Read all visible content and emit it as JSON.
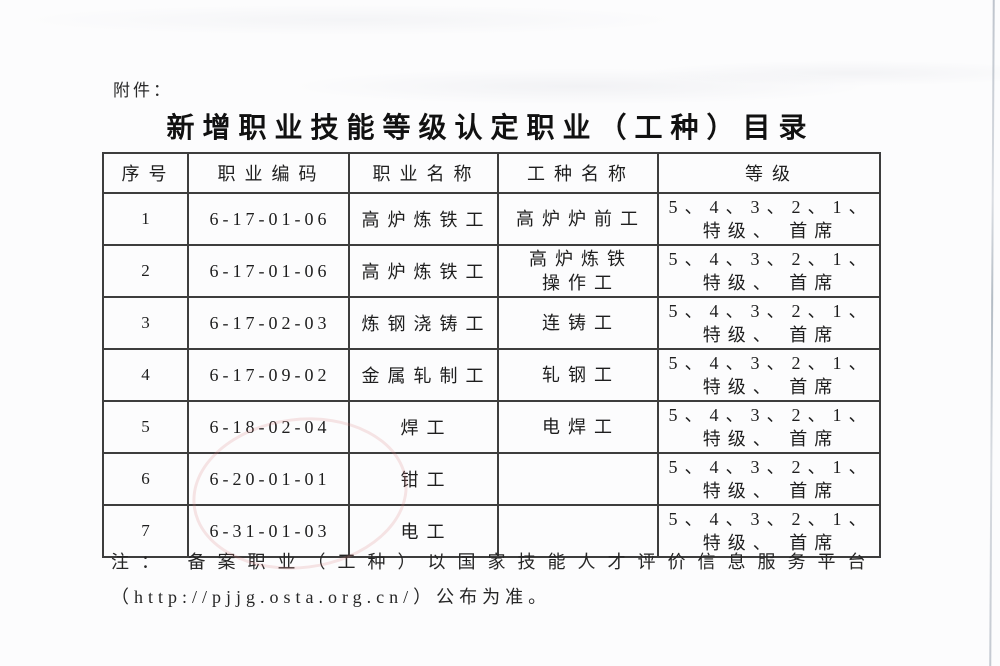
{
  "page": {
    "attachment_label": "附件：",
    "title": "新增职业技能等级认定职业（工种）目录",
    "note_line1": "注： 备案职业（工种）以国家技能人才评价信息服务平台",
    "note_line2": "（http://pjjg.osta.org.cn/）公布为准。"
  },
  "table": {
    "headers": [
      "序号",
      "职业编码",
      "职业名称",
      "工种名称",
      "等级"
    ],
    "rows": [
      {
        "no": "1",
        "code": "6-17-01-06",
        "occupation": "高炉炼铁工",
        "work_type_lines": [
          "高炉炉前工"
        ],
        "grade_lines": [
          "5、4、3、2、1、",
          "特级、 首席"
        ]
      },
      {
        "no": "2",
        "code": "6-17-01-06",
        "occupation": "高炉炼铁工",
        "work_type_lines": [
          "高炉炼铁",
          "操作工"
        ],
        "grade_lines": [
          "5、4、3、2、1、",
          "特级、 首席"
        ]
      },
      {
        "no": "3",
        "code": "6-17-02-03",
        "occupation": "炼钢浇铸工",
        "work_type_lines": [
          "连铸工"
        ],
        "grade_lines": [
          "5、4、3、2、1、",
          "特级、 首席"
        ]
      },
      {
        "no": "4",
        "code": "6-17-09-02",
        "occupation": "金属轧制工",
        "work_type_lines": [
          "轧钢工"
        ],
        "grade_lines": [
          "5、4、3、2、1、",
          "特级、 首席"
        ]
      },
      {
        "no": "5",
        "code": "6-18-02-04",
        "occupation": "焊工",
        "work_type_lines": [
          "电焊工"
        ],
        "grade_lines": [
          "5、4、3、2、1、",
          "特级、 首席"
        ]
      },
      {
        "no": "6",
        "code": "6-20-01-01",
        "occupation": "钳工",
        "work_type_lines": [],
        "grade_lines": [
          "5、4、3、2、1、",
          "特级、 首席"
        ]
      },
      {
        "no": "7",
        "code": "6-31-01-03",
        "occupation": "电工",
        "work_type_lines": [],
        "grade_lines": [
          "5、4、3、2、1、",
          "特级、 首席"
        ]
      }
    ]
  },
  "artifacts": {
    "stamp_color": "#db8080",
    "scan_line_color": "#8c96a5"
  }
}
